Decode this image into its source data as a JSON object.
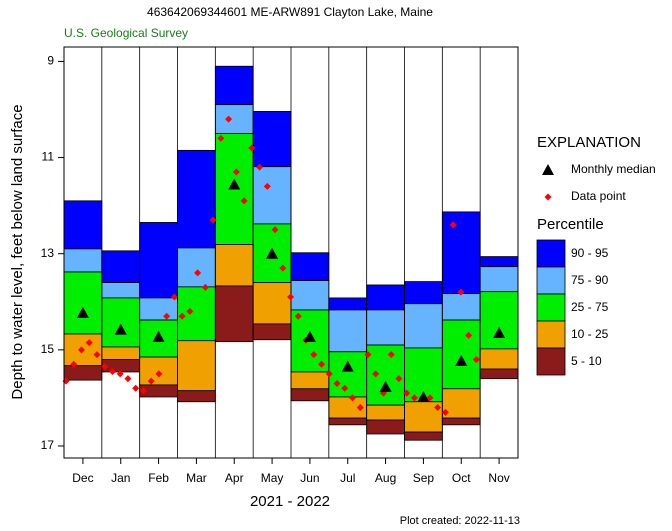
{
  "chart_data": {
    "type": "percentile",
    "title": "463642069344601 ME-ARW891 Clayton Lake, Maine",
    "subtitle": "U.S. Geological Survey",
    "y_label": "Depth to water level, feet below land surface",
    "x_label": "2021 - 2022",
    "footnote": "Plot created: 2022-11-13",
    "categories": [
      "Dec",
      "Jan",
      "Feb",
      "Mar",
      "Apr",
      "May",
      "Jun",
      "Jul",
      "Aug",
      "Sep",
      "Oct",
      "Nov"
    ],
    "ylim": [
      8.7,
      17.25
    ],
    "y_inverted": true,
    "yticks": [
      9,
      11,
      13,
      15,
      17
    ],
    "legend": {
      "title": "EXPLANATION",
      "band_title": "Percentile"
    },
    "levels": [
      [
        11.9,
        12.94,
        12.35,
        10.85,
        9.1,
        10.04,
        12.98,
        13.92,
        13.65,
        13.58,
        12.13,
        13.06
      ],
      [
        12.9,
        13.6,
        13.92,
        12.88,
        9.9,
        11.19,
        13.56,
        14.17,
        14.17,
        14.04,
        13.83,
        13.27
      ],
      [
        13.38,
        13.92,
        14.38,
        13.69,
        10.5,
        12.38,
        14.17,
        15.04,
        14.9,
        14.96,
        14.38,
        13.79
      ],
      [
        14.67,
        14.94,
        15.15,
        14.81,
        12.81,
        13.6,
        15.46,
        15.98,
        16.15,
        16.08,
        15.81,
        14.98
      ],
      [
        15.33,
        15.2,
        15.73,
        15.85,
        13.67,
        14.46,
        15.81,
        16.42,
        16.46,
        16.71,
        16.42,
        15.4
      ],
      [
        15.63,
        15.46,
        15.98,
        16.08,
        14.83,
        14.79,
        16.06,
        16.56,
        16.75,
        16.88,
        16.56,
        15.6
      ]
    ],
    "bands": [
      {
        "name": "90 - 95",
        "color": "#0000ff"
      },
      {
        "name": "75 - 90",
        "color": "#66b3ff"
      },
      {
        "name": "25 - 75",
        "color": "#00ee00"
      },
      {
        "name": "10 - 25",
        "color": "#f0a000"
      },
      {
        "name": "5 - 10",
        "color": "#8b1a1a"
      }
    ],
    "median": {
      "name": "Monthly median",
      "color": "#000000",
      "values": [
        14.23,
        14.58,
        14.73,
        null,
        11.56,
        13.0,
        14.73,
        15.35,
        15.77,
        15.98,
        15.23,
        14.65
      ]
    },
    "data_points": {
      "name": "Data point",
      "color": "#ff0000",
      "values": [
        15.65,
        15.3,
        15.0,
        14.85,
        15.1,
        15.35,
        15.45,
        15.5,
        15.6,
        15.8,
        15.85,
        15.65,
        15.5,
        14.3,
        13.9,
        14.3,
        14.2,
        13.4,
        13.7,
        12.3,
        10.6,
        10.2,
        11.3,
        11.9,
        10.8,
        11.2,
        11.6,
        12.5,
        13.3,
        13.9,
        14.3,
        14.8,
        15.1,
        15.3,
        15.5,
        15.7,
        15.8,
        16.0,
        16.2,
        15.1,
        15.5,
        15.9,
        15.1,
        15.6,
        15.9,
        16.0,
        16.0,
        16.0,
        16.2,
        16.3,
        12.4,
        13.8,
        14.7,
        15.2
      ]
    }
  }
}
